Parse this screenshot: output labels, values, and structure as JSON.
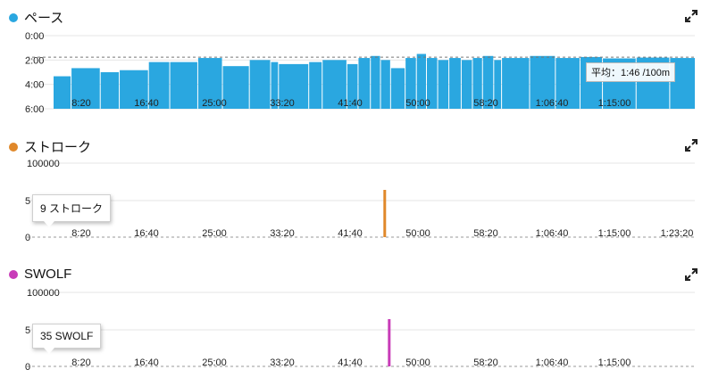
{
  "panels": {
    "pace": {
      "title": "ペース",
      "color": "#2aa7e0",
      "avg_label": "平均：1:46 /100m"
    },
    "stroke": {
      "title": "ストローク",
      "color": "#e0882a",
      "tooltip": "9 ストローク"
    },
    "swolf": {
      "title": "SWOLF",
      "color": "#c83cb8",
      "tooltip": "35 SWOLF"
    }
  },
  "icons": {
    "expand": "expand-icon"
  },
  "chart_data": [
    {
      "type": "bar",
      "title": "ペース",
      "y_ticks": [
        "0:00",
        "2:00",
        "4:00",
        "6:00"
      ],
      "y_range_seconds": [
        0,
        360
      ],
      "y_reversed": true,
      "x_range_seconds": [
        0,
        5720
      ],
      "x_tick_labels": [
        "8:20",
        "16:40",
        "25:00",
        "33:20",
        "41:40",
        "50:00",
        "58:20",
        "1:06:40",
        "1:15:00"
      ],
      "reference_line_seconds": 106,
      "reference_label": "平均：1:46 /100m",
      "series": [
        {
          "points_x_seconds": [
            0,
            160,
            420,
            590,
            850,
            1040,
            1290,
            1510,
            1750,
            1940,
            2010,
            2280,
            2400,
            2620,
            2720,
            2830,
            2920,
            3010,
            3140,
            3240,
            3330,
            3430,
            3530,
            3640,
            3740,
            3830,
            3930,
            4000,
            4250,
            4480,
            4700,
            4900,
            5200,
            5500
          ],
          "values_seconds": [
            200,
            160,
            180,
            170,
            130,
            130,
            110,
            150,
            120,
            130,
            140,
            130,
            120,
            140,
            110,
            100,
            120,
            160,
            110,
            90,
            110,
            120,
            110,
            120,
            110,
            100,
            120,
            110,
            100,
            110,
            105,
            112,
            108,
            110
          ]
        }
      ]
    },
    {
      "type": "bar",
      "title": "ストローク",
      "y_ticks": [
        "100000",
        "5",
        "0"
      ],
      "y_range": [
        0,
        100000
      ],
      "x_range_seconds": [
        0,
        5720
      ],
      "x_tick_labels": [
        "8:20",
        "16:40",
        "25:00",
        "33:20",
        "41:40",
        "50:00",
        "58:20",
        "1:06:40",
        "1:15:00",
        "1:23:20"
      ],
      "series": [
        {
          "points_x_seconds": [
            2950
          ],
          "values": [
            9
          ]
        }
      ]
    },
    {
      "type": "bar",
      "title": "SWOLF",
      "y_ticks": [
        "100000",
        "5",
        "0"
      ],
      "y_range": [
        0,
        100000
      ],
      "x_range_seconds": [
        0,
        5720
      ],
      "x_tick_labels": [
        "8:20",
        "16:40",
        "25:00",
        "33:20",
        "41:40",
        "50:00",
        "58:20",
        "1:06:40",
        "1:15:00"
      ],
      "series": [
        {
          "points_x_seconds": [
            2990
          ],
          "values": [
            35
          ]
        }
      ]
    }
  ]
}
